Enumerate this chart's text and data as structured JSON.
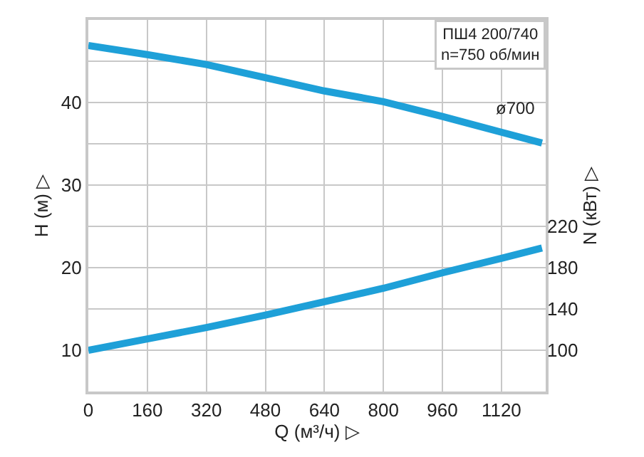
{
  "chart_data": {
    "type": "line",
    "x": [
      0,
      160,
      320,
      480,
      640,
      800,
      960,
      1120,
      1230
    ],
    "xlabel": "Q (м³/ч) ▷",
    "ylabel": "H (м) ▷",
    "y2label": "N (кВт) ▷",
    "series": [
      {
        "color": "#1ea0d8",
        "values": [
          46.9,
          45.8,
          44.6,
          43.0,
          41.4,
          40.1,
          38.3,
          36.4,
          35.1
        ]
      },
      {
        "color": "#1ea0d8",
        "axis": "y2",
        "values": [
          100,
          111,
          122,
          134,
          147,
          160,
          175,
          189,
          199
        ]
      }
    ],
    "xlim": [
      0,
      1240
    ],
    "xticks": [
      0,
      160,
      320,
      480,
      640,
      800,
      960,
      1120
    ],
    "ylim": [
      5,
      50
    ],
    "yticks": [
      10,
      {
        "value": 15,
        "label": null
      },
      20,
      {
        "value": 25,
        "label": null
      },
      30,
      {
        "value": 35,
        "label": null
      },
      40,
      {
        "value": 45,
        "label": null
      }
    ],
    "y2lim": [
      60,
      420
    ],
    "y2ticks": [
      100,
      140,
      180,
      220
    ],
    "grid": true,
    "line_style": "solid",
    "marker": "none",
    "annotations": [
      "ПШ4 200/740\nn=750 об/мин",
      {
        "text": "ø700",
        "x": 1120,
        "y": 36.4
      }
    ]
  }
}
